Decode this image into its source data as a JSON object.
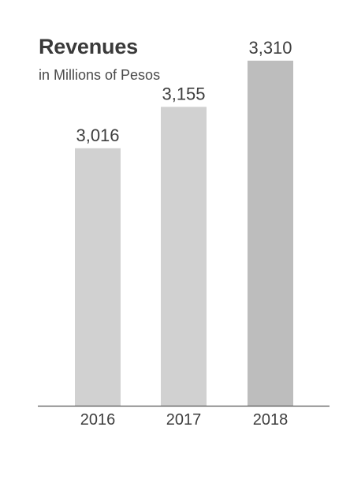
{
  "chart_data": {
    "type": "bar",
    "title": "Revenues",
    "subtitle": "in Millions of Pesos",
    "categories": [
      "2016",
      "2017",
      "2018"
    ],
    "values": [
      3016,
      3155,
      3310
    ],
    "value_labels": [
      "3,016",
      "3,155",
      "3,310"
    ],
    "bar_colors": [
      "#d1d1d1",
      "#d1d1d1",
      "#bdbdbd"
    ],
    "axis_color": "#555555",
    "grid": false,
    "legend": "none",
    "xlabel": "",
    "ylabel": ""
  }
}
